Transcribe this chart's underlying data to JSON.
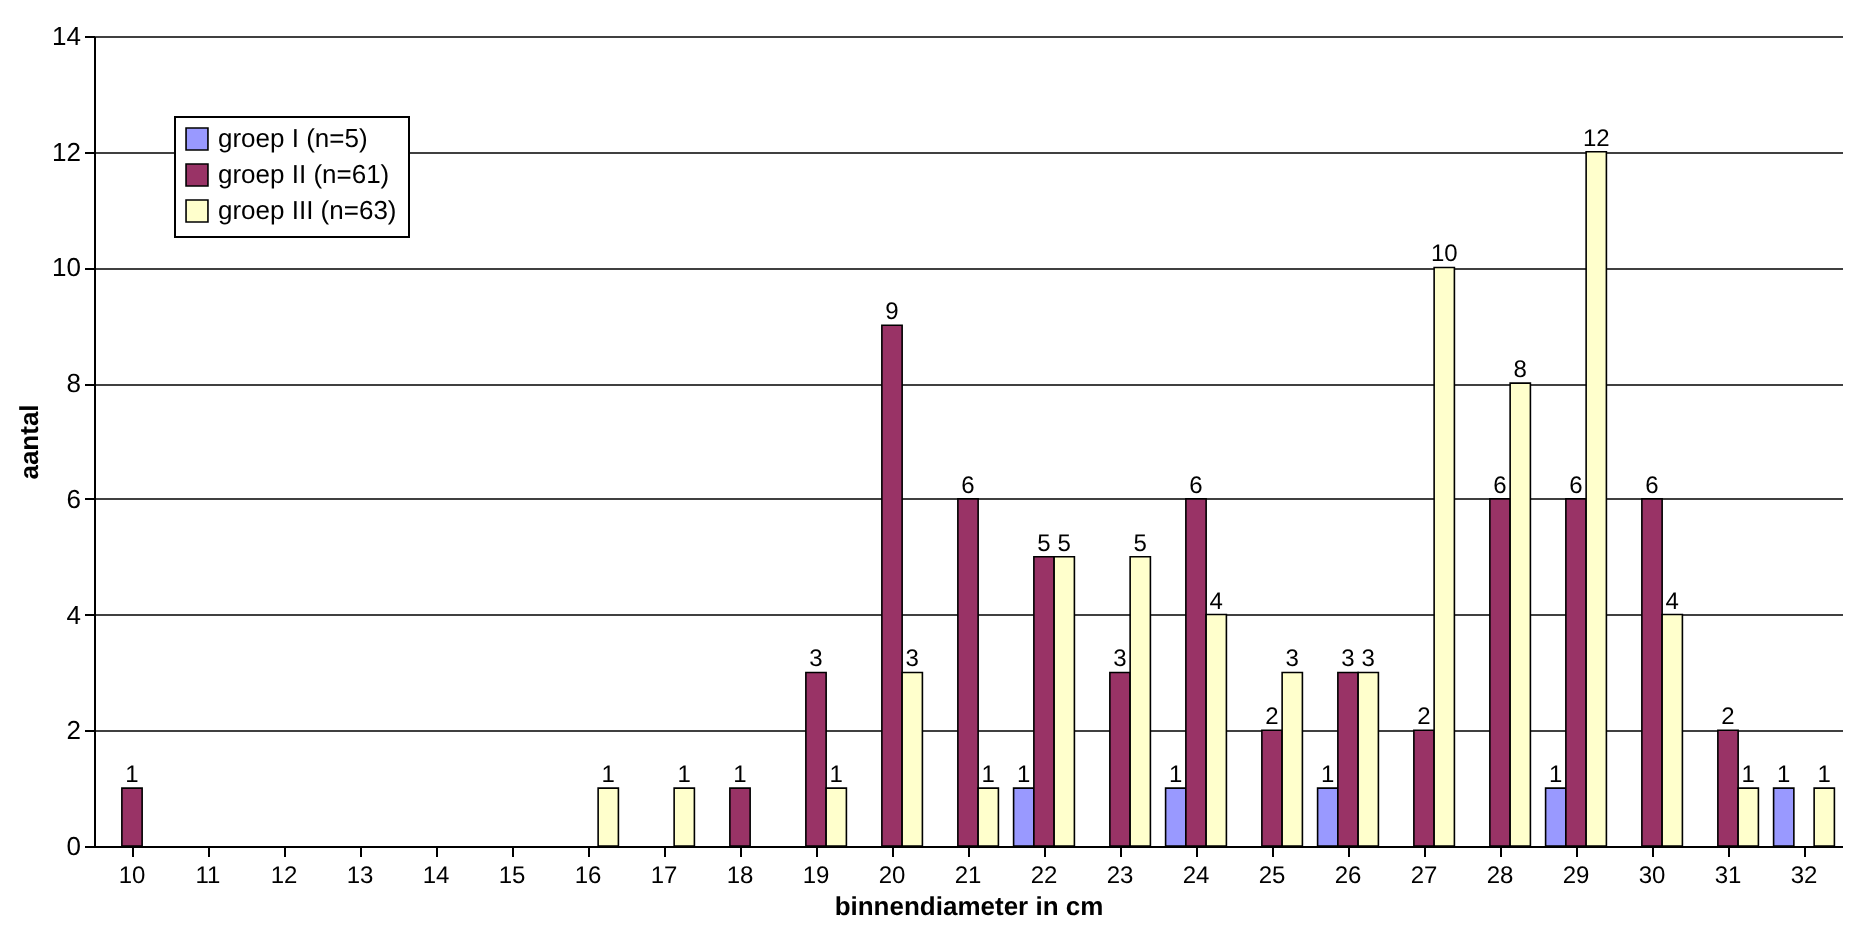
{
  "chart_data": {
    "type": "bar",
    "xlabel": "binnendiameter in cm",
    "ylabel": "aantal",
    "categories": [
      "10",
      "11",
      "12",
      "13",
      "14",
      "15",
      "16",
      "17",
      "18",
      "19",
      "20",
      "21",
      "22",
      "23",
      "24",
      "25",
      "26",
      "27",
      "28",
      "29",
      "30",
      "31",
      "32"
    ],
    "series": [
      {
        "name": "groep I (n=5)",
        "color": "#9999ff",
        "values": [
          null,
          null,
          null,
          null,
          null,
          null,
          null,
          null,
          null,
          null,
          null,
          null,
          1,
          null,
          1,
          null,
          1,
          null,
          null,
          1,
          null,
          null,
          1
        ]
      },
      {
        "name": "groep II (n=61)",
        "color": "#993366",
        "values": [
          1,
          null,
          null,
          null,
          null,
          null,
          null,
          null,
          1,
          3,
          9,
          6,
          5,
          3,
          6,
          2,
          3,
          2,
          6,
          6,
          6,
          2,
          null
        ]
      },
      {
        "name": "groep III (n=63)",
        "color": "#ffffcc",
        "values": [
          null,
          null,
          null,
          null,
          null,
          null,
          1,
          1,
          null,
          1,
          3,
          1,
          5,
          5,
          4,
          3,
          3,
          10,
          8,
          12,
          4,
          1,
          1
        ]
      }
    ],
    "ylim": [
      0,
      14
    ],
    "yticks": [
      0,
      2,
      4,
      6,
      8,
      10,
      12,
      14
    ],
    "grid": "y",
    "legend": "top left",
    "data_labels": true
  }
}
